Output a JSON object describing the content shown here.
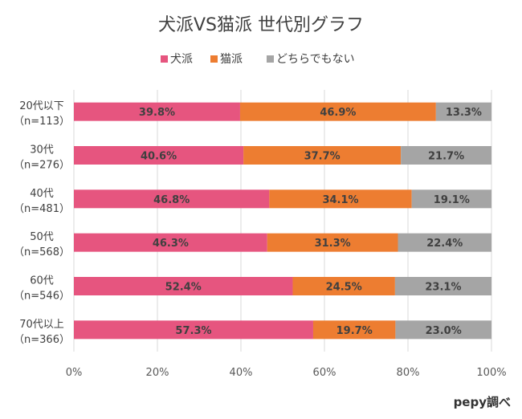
{
  "chart_data": {
    "type": "bar",
    "orientation": "horizontal",
    "stacked": true,
    "title": "犬派VS猫派 世代別グラフ",
    "categories": [
      {
        "label": "20代以下",
        "sample": "（n=113）"
      },
      {
        "label": "30代",
        "sample": "（n=276）"
      },
      {
        "label": "40代",
        "sample": "（n=481）"
      },
      {
        "label": "50代",
        "sample": "（n=568）"
      },
      {
        "label": "60代",
        "sample": "（n=546）"
      },
      {
        "label": "70代以上",
        "sample": "（n=366）"
      }
    ],
    "series": [
      {
        "name": "犬派",
        "color": "#e6557f",
        "values": [
          39.8,
          40.6,
          46.8,
          46.3,
          52.4,
          57.3
        ]
      },
      {
        "name": "猫派",
        "color": "#ed7d31",
        "values": [
          46.9,
          37.7,
          34.1,
          31.3,
          24.5,
          19.7
        ]
      },
      {
        "name": "どちらでもない",
        "color": "#a5a5a5",
        "values": [
          13.3,
          21.7,
          19.1,
          22.4,
          23.1,
          23.0
        ]
      }
    ],
    "xlim": [
      0,
      100
    ],
    "xticks": [
      "0%",
      "20%",
      "40%",
      "60%",
      "80%",
      "100%"
    ],
    "value_suffix": "%",
    "legend_position": "top",
    "grid": true
  },
  "source": "pepy調べ"
}
